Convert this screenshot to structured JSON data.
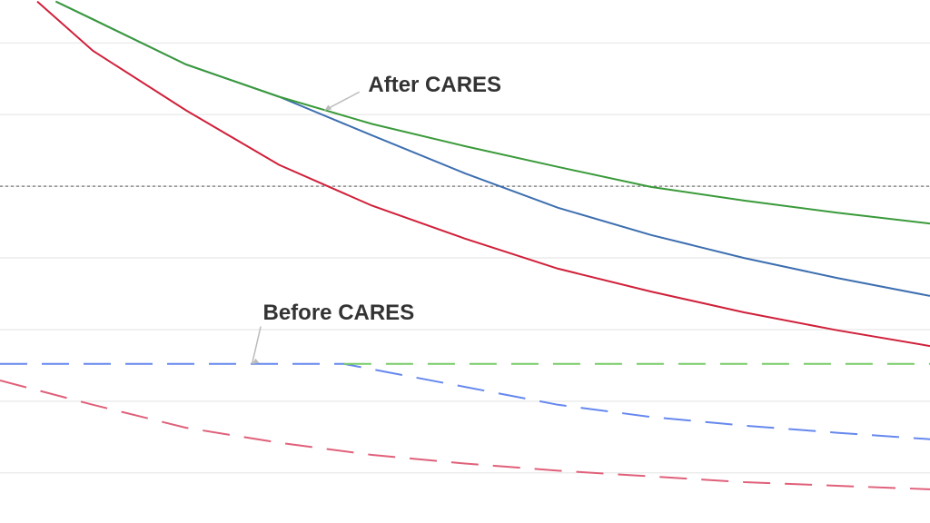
{
  "chart_data": {
    "type": "line",
    "xlim": [
      0,
      10
    ],
    "ylim": [
      0.3,
      7.6
    ],
    "yticks": [
      1,
      2,
      3,
      4,
      5,
      6,
      7
    ],
    "grid": true,
    "reference_line": 5,
    "series": [
      {
        "color": "#d0203a",
        "dash": false,
        "x": [
          0.4,
          1,
          2,
          3,
          4,
          5,
          6,
          7,
          8,
          9,
          10
        ],
        "values": [
          7.58,
          6.89,
          6.06,
          5.3,
          4.73,
          4.27,
          3.85,
          3.53,
          3.24,
          2.99,
          2.77
        ]
      },
      {
        "color": "#3d6fb0",
        "dash": false,
        "x": [
          0.6,
          1,
          2,
          3,
          4,
          5,
          6,
          7,
          8,
          9,
          10
        ],
        "values": [
          7.58,
          7.33,
          6.7,
          6.25,
          5.71,
          5.18,
          4.7,
          4.32,
          4.0,
          3.72,
          3.47
        ]
      },
      {
        "color": "#3a9a3a",
        "dash": false,
        "x": [
          0.6,
          1,
          2,
          3,
          4,
          5,
          6,
          7,
          8,
          9,
          10
        ],
        "values": [
          7.58,
          7.33,
          6.7,
          6.25,
          5.87,
          5.56,
          5.27,
          4.99,
          4.8,
          4.63,
          4.48
        ]
      },
      {
        "color": "#e0607a",
        "dash": true,
        "x": [
          0,
          1,
          2,
          3,
          4,
          5,
          6,
          7,
          8,
          9,
          10
        ],
        "values": [
          2.29,
          1.95,
          1.63,
          1.42,
          1.25,
          1.13,
          1.03,
          0.95,
          0.87,
          0.82,
          0.77
        ]
      },
      {
        "color": "#6688ee",
        "dash": true,
        "x": [
          0,
          1,
          2,
          3,
          3.7,
          5,
          6,
          7,
          8,
          9,
          10
        ],
        "values": [
          2.52,
          2.52,
          2.52,
          2.52,
          2.52,
          2.2,
          1.95,
          1.78,
          1.66,
          1.56,
          1.47
        ]
      },
      {
        "color": "#77cc66",
        "dash": true,
        "x": [
          3.7,
          10
        ],
        "values": [
          2.52,
          2.52
        ]
      }
    ],
    "annotations": [
      {
        "text": "After CARES",
        "x": 3.49,
        "y": 6.06
      },
      {
        "text": "Before CARES",
        "x": 2.71,
        "y": 2.52
      }
    ]
  }
}
